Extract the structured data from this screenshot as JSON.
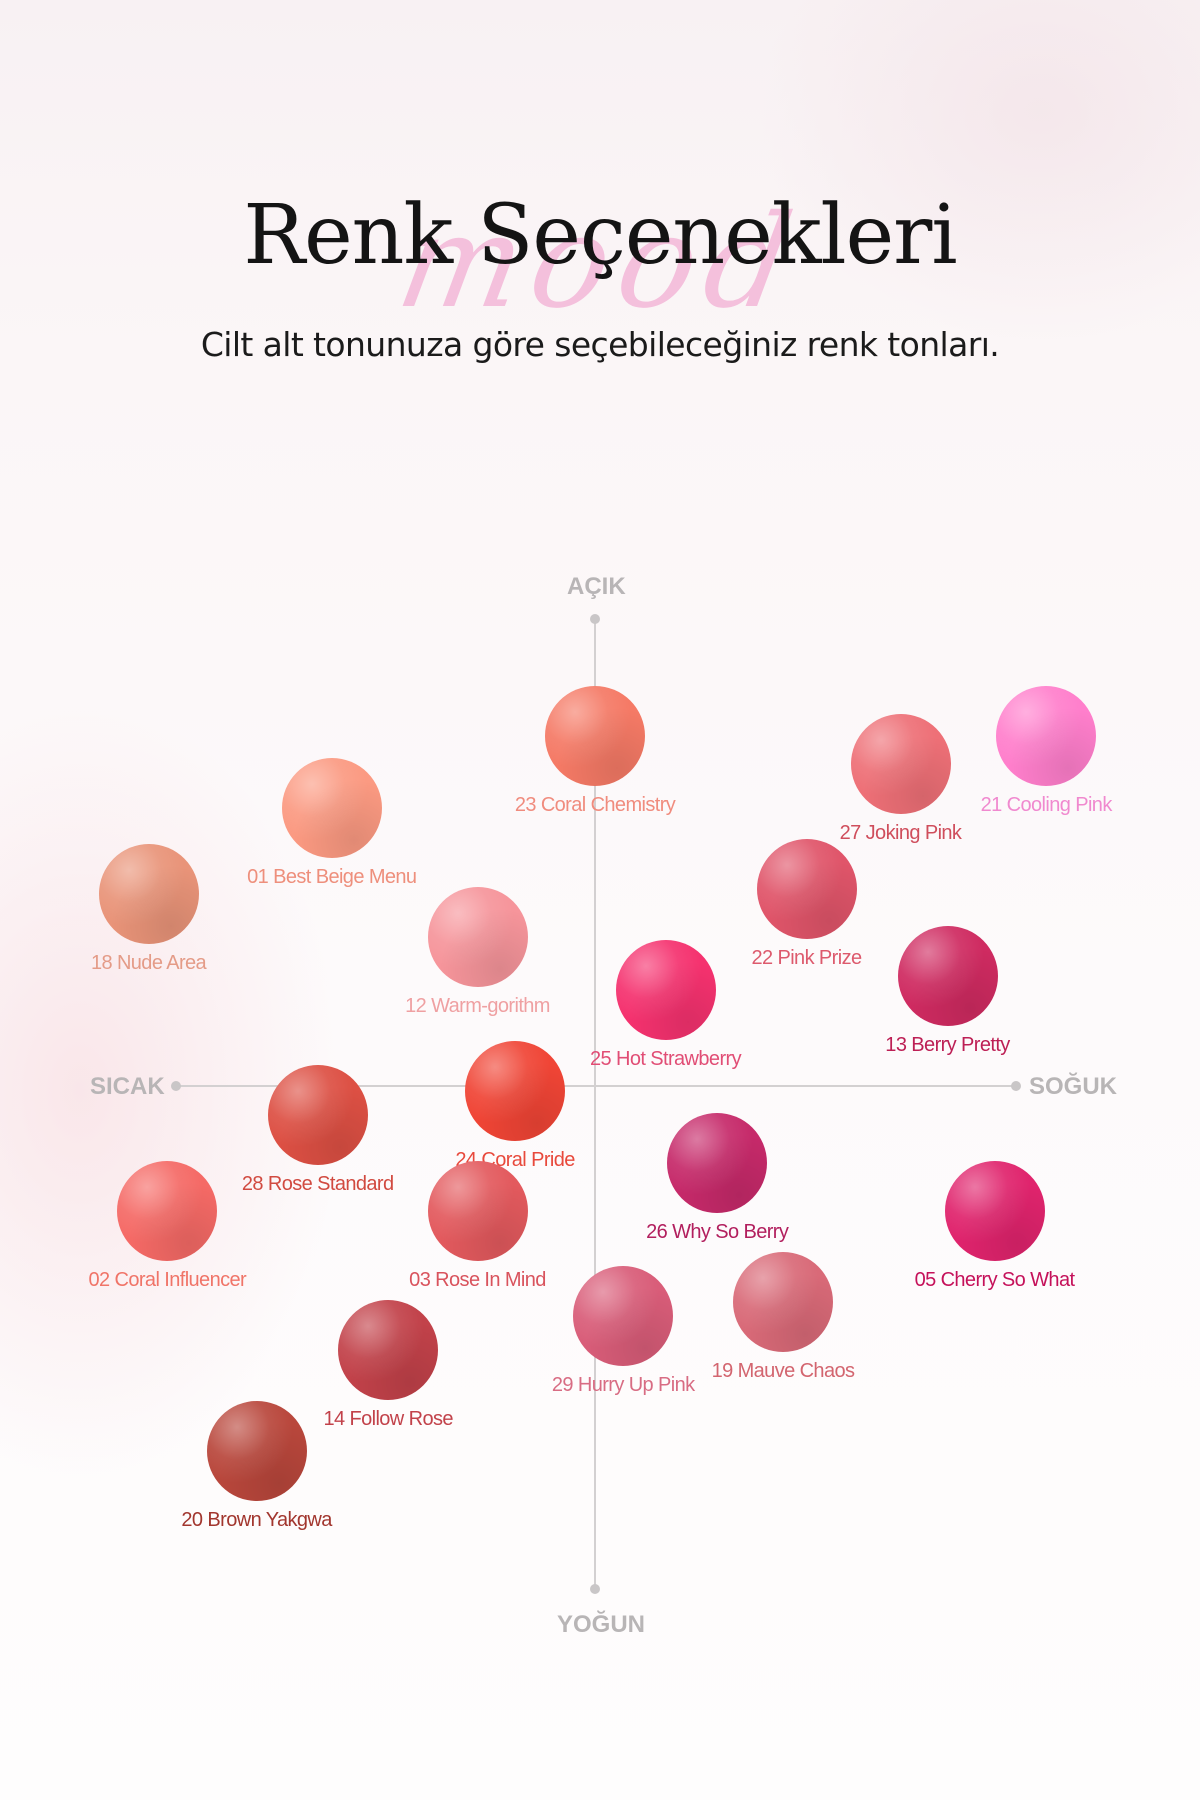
{
  "header": {
    "script_word": "mood",
    "title": "Renk Seçenekleri",
    "subtitle": "Cilt alt tonunuza göre seçebileceğiniz renk tonları."
  },
  "axes": {
    "top": "AÇIK",
    "bottom": "YOĞUN",
    "left": "SICAK",
    "right": "SOĞUK"
  },
  "shades": [
    {
      "label": "23 Coral Chemistry",
      "color": "#f57a66",
      "text_color": "#f08c7e",
      "warm_cool": 0.0,
      "light_intense": 0.73
    },
    {
      "label": "21 Cooling Pink",
      "color": "#ff7fcc",
      "text_color": "#f089cf",
      "warm_cool": 0.96,
      "light_intense": 0.73
    },
    {
      "label": "27 Joking Pink",
      "color": "#ee7077",
      "text_color": "#cf4e5c",
      "warm_cool": 0.65,
      "light_intense": 0.67
    },
    {
      "label": "01 Best Beige Menu",
      "color": "#fb9a82",
      "text_color": "#ee8f7c",
      "warm_cool": -0.56,
      "light_intense": 0.58
    },
    {
      "label": "22 Pink Prize",
      "color": "#e0556a",
      "text_color": "#dd5a6d",
      "warm_cool": 0.45,
      "light_intense": 0.41
    },
    {
      "label": "18 Nude Area",
      "color": "#e99479",
      "text_color": "#e49b87",
      "warm_cool": -0.95,
      "light_intense": 0.4
    },
    {
      "label": "12 Warm-gorithm",
      "color": "#f6959b",
      "text_color": "#efa0a2",
      "warm_cool": -0.25,
      "light_intense": 0.31
    },
    {
      "label": "13 Berry Pretty",
      "color": "#cf2b61",
      "text_color": "#bd1f55",
      "warm_cool": 0.75,
      "light_intense": 0.23
    },
    {
      "label": "25 Hot Strawberry",
      "color": "#f5326f",
      "text_color": "#e14d75",
      "warm_cool": 0.15,
      "light_intense": 0.2
    },
    {
      "label": "24 Coral Pride",
      "color": "#f04536",
      "text_color": "#e8493c",
      "warm_cool": -0.17,
      "light_intense": -0.01
    },
    {
      "label": "28 Rose Standard",
      "color": "#dd5044",
      "text_color": "#d14a40",
      "warm_cool": -0.59,
      "light_intense": -0.06
    },
    {
      "label": "02 Coral Influencer",
      "color": "#f56a66",
      "text_color": "#f07468",
      "warm_cool": -0.91,
      "light_intense": -0.26
    },
    {
      "label": "03 Rose In Mind",
      "color": "#e35a5e",
      "text_color": "#d9535d",
      "warm_cool": -0.25,
      "light_intense": -0.26
    },
    {
      "label": "26 Why So Berry",
      "color": "#c62a6a",
      "text_color": "#b21f5e",
      "warm_cool": 0.26,
      "light_intense": -0.16
    },
    {
      "label": "05 Cherry So What",
      "color": "#e0246d",
      "text_color": "#c5115a",
      "warm_cool": 0.85,
      "light_intense": -0.26
    },
    {
      "label": "19 Mauve Chaos",
      "color": "#d96a78",
      "text_color": "#d3656f",
      "warm_cool": 0.4,
      "light_intense": -0.45
    },
    {
      "label": "29 Hurry Up Pink",
      "color": "#d95d79",
      "text_color": "#d86c83",
      "warm_cool": 0.06,
      "light_intense": -0.48
    },
    {
      "label": "14 Follow Rose",
      "color": "#c2424a",
      "text_color": "#c2424a",
      "warm_cool": -0.44,
      "light_intense": -0.55
    },
    {
      "label": "20 Brown Yakgwa",
      "color": "#b9473c",
      "text_color": "#a2362e",
      "warm_cool": -0.72,
      "light_intense": -0.76
    }
  ]
}
